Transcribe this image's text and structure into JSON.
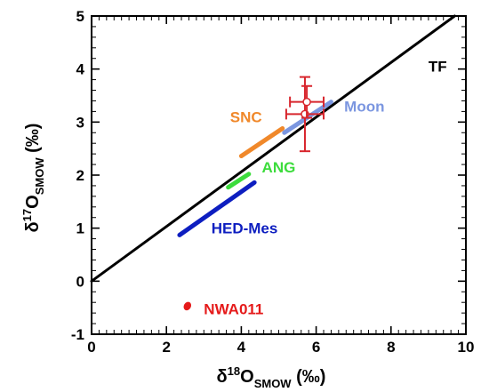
{
  "chart_data": {
    "type": "line",
    "xlabel": {
      "prefix": "δ",
      "sup": "18",
      "main": "O",
      "sub": "SMOW",
      "unit": " (‰)"
    },
    "ylabel": {
      "prefix": "δ",
      "sup": "17",
      "main": "O",
      "sub": "SMOW",
      "unit": " (‰)"
    },
    "xlim": [
      0,
      10
    ],
    "ylim": [
      -1,
      5
    ],
    "x_ticks": [
      "0",
      "2",
      "4",
      "6",
      "8",
      "10"
    ],
    "y_ticks": [
      "-1",
      "0",
      "1",
      "2",
      "3",
      "4",
      "5"
    ],
    "grid": false,
    "series": [
      {
        "name": "TF",
        "color": "#000000",
        "points": [
          [
            0,
            0
          ],
          [
            9.7,
            5.0
          ]
        ]
      },
      {
        "name": "SNC",
        "color": "#f0882a",
        "points": [
          [
            4.0,
            2.36
          ],
          [
            5.1,
            2.88
          ]
        ]
      },
      {
        "name": "Moon",
        "color": "#7b96e0",
        "points": [
          [
            5.15,
            2.8
          ],
          [
            6.4,
            3.38
          ]
        ]
      },
      {
        "name": "ANG",
        "color": "#3cdc3c",
        "points": [
          [
            3.65,
            1.77
          ],
          [
            4.2,
            2.02
          ]
        ]
      },
      {
        "name": "HED-Mes",
        "color": "#0d1ec0",
        "points": [
          [
            2.35,
            0.87
          ],
          [
            4.35,
            1.86
          ]
        ]
      },
      {
        "name": "NWA011",
        "color": "#e51a1a",
        "points": [
          [
            2.52,
            -0.5
          ],
          [
            2.6,
            -0.44
          ]
        ]
      }
    ],
    "error_points": [
      {
        "x": 5.7,
        "y": 3.15,
        "xerr": [
          0.5
        ],
        "yerr": [
          0.7
        ],
        "color": "#d8262d"
      },
      {
        "x": 5.75,
        "y": 3.38,
        "xerr": [
          0.45
        ],
        "yerr": [
          0.3
        ],
        "color": "#d8262d"
      }
    ],
    "annotations": [
      {
        "text": "TF",
        "x": 9.0,
        "y": 3.95,
        "color": "#000000"
      },
      {
        "text": "SNC",
        "x": 3.7,
        "y": 3.0,
        "color": "#f0882a"
      },
      {
        "text": "Moon",
        "x": 6.75,
        "y": 3.2,
        "color": "#7b96e0"
      },
      {
        "text": "ANG",
        "x": 4.55,
        "y": 2.05,
        "color": "#3cdc3c"
      },
      {
        "text": "HED-Mes",
        "x": 3.2,
        "y": 0.9,
        "color": "#0d1ec0"
      },
      {
        "text": "NWA011",
        "x": 3.0,
        "y": -0.62,
        "color": "#e51a1a"
      }
    ]
  }
}
